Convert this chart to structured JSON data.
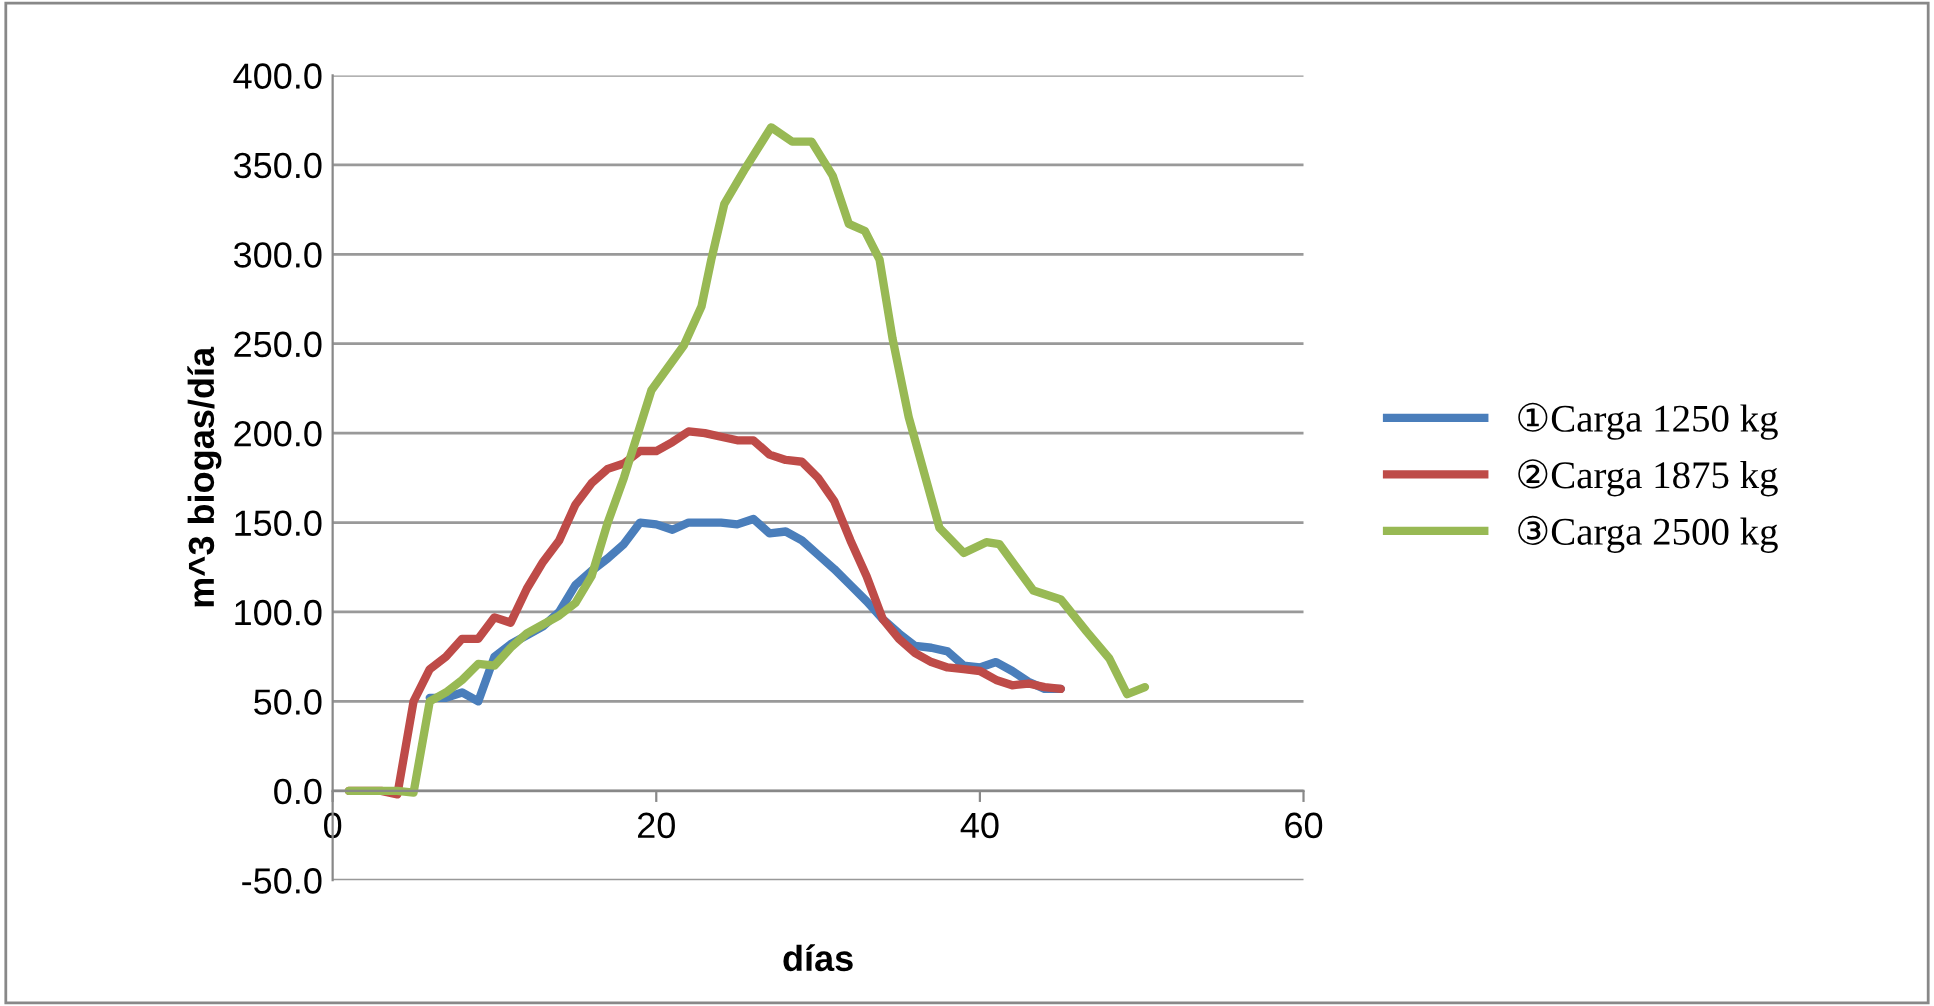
{
  "chart_data": {
    "type": "line",
    "xlabel": "días",
    "ylabel": "m^3 biogas/día",
    "xlim": [
      0,
      60
    ],
    "xticks": [
      0,
      20,
      40,
      60
    ],
    "ylim": [
      -50,
      400
    ],
    "yticks": [
      {
        "value": -50,
        "label": "-50.0"
      },
      {
        "value": 0,
        "label": "0.0"
      },
      {
        "value": 50,
        "label": "50.0"
      },
      {
        "value": 100,
        "label": "100.0"
      },
      {
        "value": 150,
        "label": "150.0"
      },
      {
        "value": 200,
        "label": "200.0"
      },
      {
        "value": 250,
        "label": "250.0"
      },
      {
        "value": 300,
        "label": "300.0"
      },
      {
        "value": 350,
        "label": "350.0"
      },
      {
        "value": 400,
        "label": "400.0"
      }
    ],
    "grid": "y",
    "legend": "right",
    "marker": "none",
    "line_style": "solid",
    "series": [
      {
        "name": "①Carga 1250 kg",
        "color": "#4a7ebb",
        "x": [
          6,
          7,
          8,
          9,
          10,
          11,
          12,
          13,
          14,
          15,
          16,
          17,
          18,
          19,
          20,
          21,
          22,
          23,
          24,
          25,
          26,
          27,
          28,
          29,
          30,
          31,
          32,
          33,
          34,
          35,
          36,
          37,
          38,
          39,
          40,
          41,
          42,
          43,
          44,
          45
        ],
        "values": [
          52,
          52,
          55,
          50,
          75,
          82,
          87,
          92,
          100,
          115,
          123,
          130,
          138,
          150,
          149,
          146,
          150,
          150,
          150,
          149,
          152,
          144,
          145,
          140,
          132,
          124,
          115,
          106,
          96,
          88,
          81,
          80,
          78,
          70,
          69,
          72,
          67,
          61,
          57,
          57
        ]
      },
      {
        "name": "②Carga 1875 kg",
        "color": "#be4b48",
        "x": [
          1,
          2,
          3,
          4,
          5,
          6,
          7,
          8,
          9,
          10,
          11,
          12,
          13,
          14,
          15,
          16,
          17,
          18,
          19,
          20,
          21,
          22,
          23,
          24,
          25,
          26,
          27,
          28,
          29,
          30,
          31,
          32,
          33,
          34,
          35,
          36,
          37,
          38,
          39,
          40,
          41,
          42,
          43,
          44,
          45
        ],
        "values": [
          0,
          0,
          0,
          -2,
          50,
          68,
          75,
          85,
          85,
          97,
          94,
          113,
          128,
          140,
          160,
          172,
          180,
          183,
          190,
          190,
          195,
          201,
          200,
          198,
          196,
          196,
          188,
          185,
          184,
          175,
          162,
          140,
          120,
          96,
          85,
          77,
          72,
          69,
          68,
          67,
          62,
          59,
          60,
          58,
          57
        ]
      },
      {
        "name": "③Carga 2500 kg",
        "color": "#98b954",
        "x": [
          1,
          2,
          3,
          4,
          5,
          6,
          7,
          8,
          9,
          10,
          11,
          12,
          13,
          14,
          15,
          16,
          17,
          18,
          19.7,
          21.7,
          22.8,
          23.4,
          24.2,
          25.5,
          27.1,
          28.4,
          29.6,
          30.9,
          31.9,
          32.9,
          33.8,
          34.6,
          35.6,
          37.5,
          39,
          40.4,
          41.2,
          43.3,
          45,
          46.6,
          48,
          49.1,
          50.2
        ],
        "values": [
          0,
          0,
          0,
          0,
          -1,
          50,
          55,
          62,
          71,
          70,
          80,
          88,
          93,
          98,
          105,
          120,
          150,
          175,
          224,
          249,
          271,
          297,
          328,
          348,
          371,
          363,
          363,
          344,
          317,
          313,
          297,
          253,
          209,
          147,
          133,
          139,
          138,
          112,
          107,
          89,
          74,
          54,
          58
        ]
      }
    ]
  }
}
